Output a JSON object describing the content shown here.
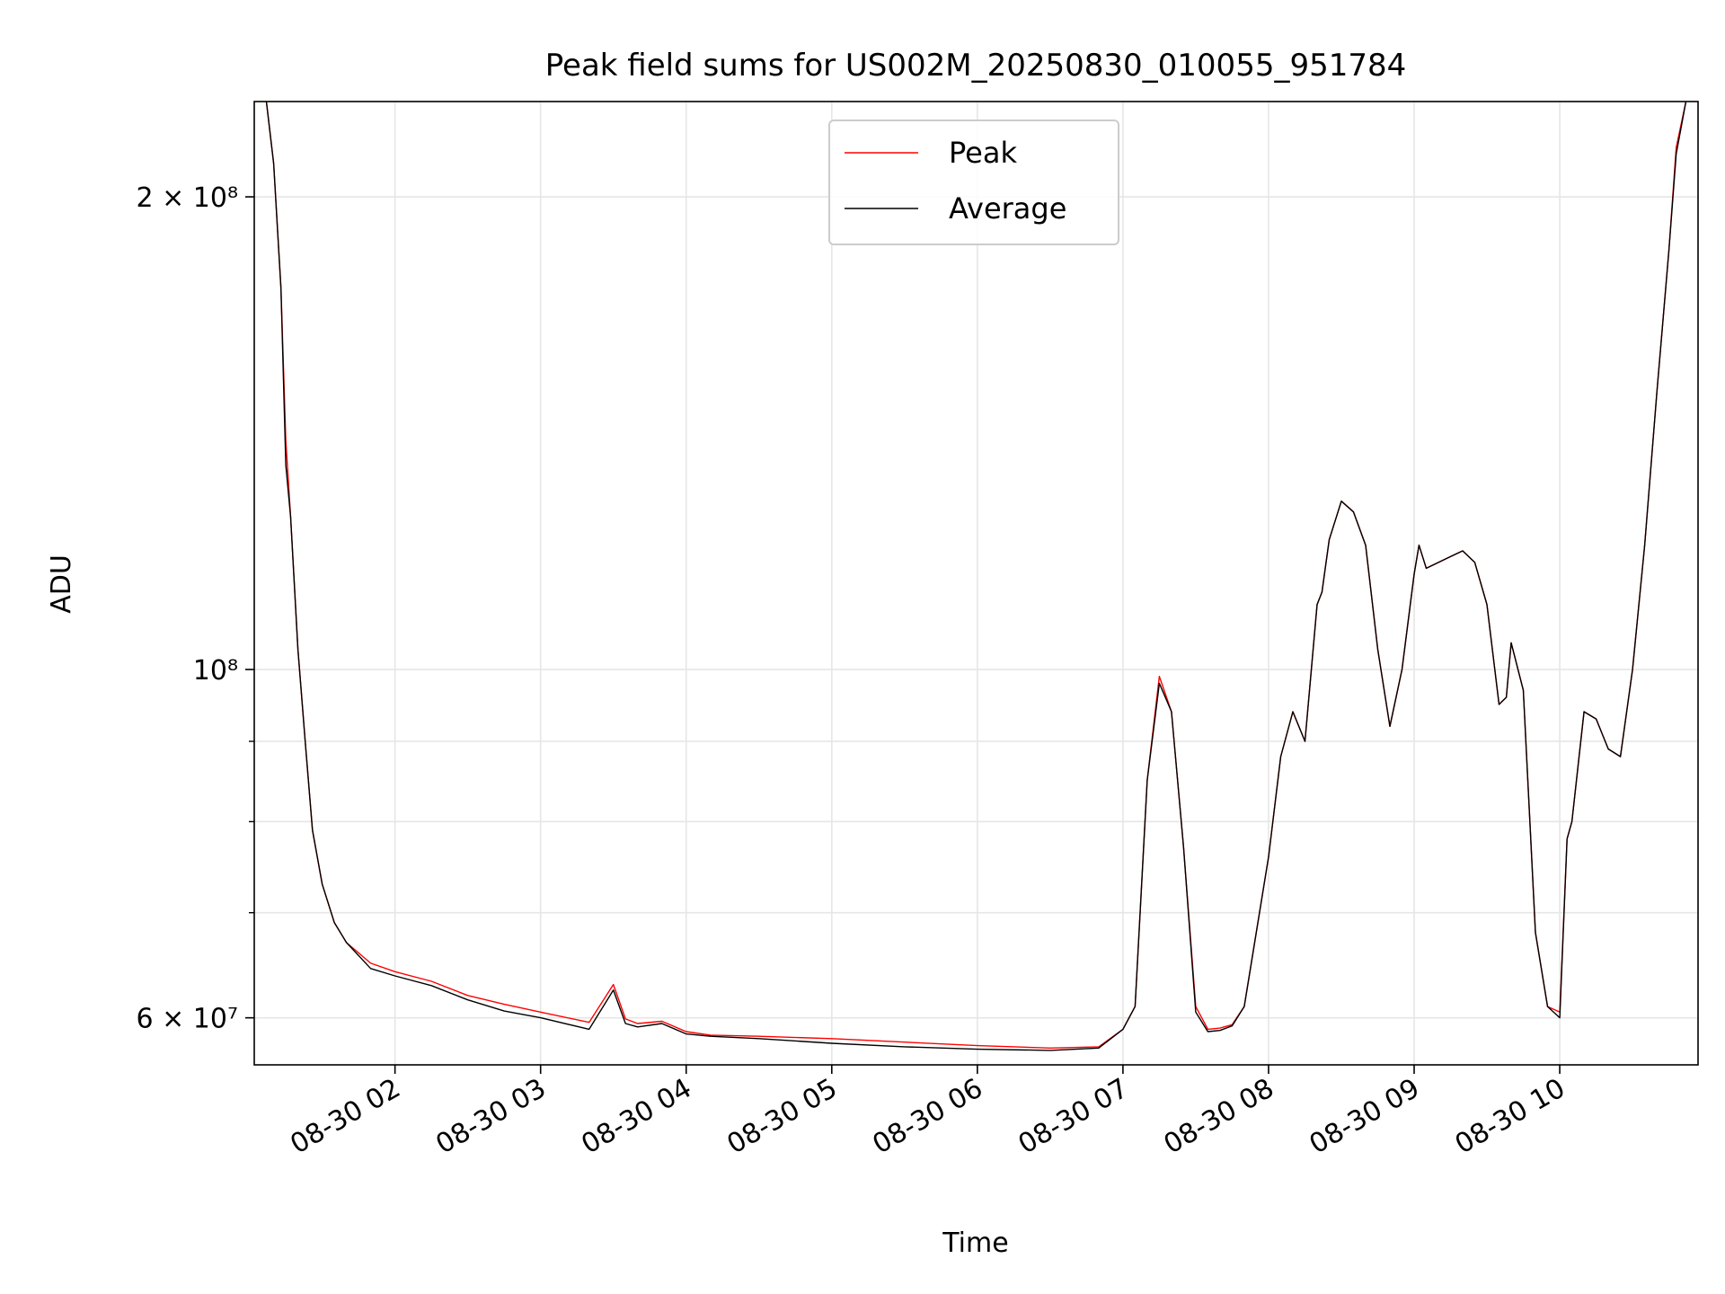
{
  "chart_data": {
    "type": "line",
    "title": "Peak field sums for US002M_20250830_010055_951784",
    "xlabel": "Time",
    "ylabel": "ADU",
    "y_scale": "log",
    "ylim": [
      56000000,
      230000000
    ],
    "xlim": [
      "2025-08-30 01:02",
      "2025-08-30 10:57"
    ],
    "grid": true,
    "legend_position": "upper center",
    "x_tick_labels": [
      "08-30 02",
      "08-30 03",
      "08-30 04",
      "08-30 05",
      "08-30 06",
      "08-30 07",
      "08-30 08",
      "08-30 09",
      "08-30 10"
    ],
    "x_ticks": [
      "2025-08-30 02:00",
      "2025-08-30 03:00",
      "2025-08-30 04:00",
      "2025-08-30 05:00",
      "2025-08-30 06:00",
      "2025-08-30 07:00",
      "2025-08-30 08:00",
      "2025-08-30 09:00",
      "2025-08-30 10:00"
    ],
    "y_tick_labels": [
      {
        "value": 200000000,
        "label": "2 × 10⁸"
      },
      {
        "value": 100000000,
        "label": "10⁸"
      },
      {
        "value": 60000000,
        "label": "6 × 10⁷"
      }
    ],
    "y_minor_ticks": [
      70000000,
      80000000,
      90000000
    ],
    "series": [
      {
        "name": "Peak",
        "color": "#ff0000",
        "x": [
          "2025-08-30 01:07",
          "2025-08-30 01:10",
          "2025-08-30 01:13",
          "2025-08-30 01:15",
          "2025-08-30 01:17",
          "2025-08-30 01:20",
          "2025-08-30 01:23",
          "2025-08-30 01:26",
          "2025-08-30 01:30",
          "2025-08-30 01:35",
          "2025-08-30 01:40",
          "2025-08-30 01:50",
          "2025-08-30 02:00",
          "2025-08-30 02:15",
          "2025-08-30 02:30",
          "2025-08-30 02:45",
          "2025-08-30 03:00",
          "2025-08-30 03:20",
          "2025-08-30 03:30",
          "2025-08-30 03:35",
          "2025-08-30 03:40",
          "2025-08-30 03:50",
          "2025-08-30 04:00",
          "2025-08-30 04:10",
          "2025-08-30 04:30",
          "2025-08-30 05:00",
          "2025-08-30 05:30",
          "2025-08-30 06:00",
          "2025-08-30 06:30",
          "2025-08-30 06:50",
          "2025-08-30 07:00",
          "2025-08-30 07:05",
          "2025-08-30 07:10",
          "2025-08-30 07:15",
          "2025-08-30 07:20",
          "2025-08-30 07:25",
          "2025-08-30 07:30",
          "2025-08-30 07:35",
          "2025-08-30 07:40",
          "2025-08-30 07:45",
          "2025-08-30 07:50",
          "2025-08-30 08:00",
          "2025-08-30 08:05",
          "2025-08-30 08:10",
          "2025-08-30 08:15",
          "2025-08-30 08:20",
          "2025-08-30 08:22",
          "2025-08-30 08:25",
          "2025-08-30 08:30",
          "2025-08-30 08:35",
          "2025-08-30 08:40",
          "2025-08-30 08:45",
          "2025-08-30 08:50",
          "2025-08-30 08:55",
          "2025-08-30 09:00",
          "2025-08-30 09:02",
          "2025-08-30 09:05",
          "2025-08-30 09:10",
          "2025-08-30 09:15",
          "2025-08-30 09:20",
          "2025-08-30 09:25",
          "2025-08-30 09:30",
          "2025-08-30 09:35",
          "2025-08-30 09:38",
          "2025-08-30 09:40",
          "2025-08-30 09:45",
          "2025-08-30 09:50",
          "2025-08-30 09:55",
          "2025-08-30 10:00",
          "2025-08-30 10:03",
          "2025-08-30 10:05",
          "2025-08-30 10:10",
          "2025-08-30 10:15",
          "2025-08-30 10:20",
          "2025-08-30 10:25",
          "2025-08-30 10:30",
          "2025-08-30 10:35",
          "2025-08-30 10:40",
          "2025-08-30 10:45",
          "2025-08-30 10:48",
          "2025-08-30 10:52"
        ],
        "y": [
          230000000,
          210000000,
          175000000,
          140000000,
          125000000,
          103000000,
          90000000,
          79000000,
          73000000,
          69000000,
          67000000,
          65000000,
          64200000,
          63300000,
          62000000,
          61200000,
          60500000,
          59600000,
          63000000,
          59900000,
          59500000,
          59700000,
          58800000,
          58500000,
          58400000,
          58200000,
          57900000,
          57600000,
          57400000,
          57500000,
          59000000,
          61000000,
          85000000,
          99000000,
          94000000,
          77000000,
          61000000,
          59000000,
          59100000,
          59400000,
          61000000,
          76000000,
          88000000,
          94000000,
          90000000,
          110000000,
          112000000,
          121000000,
          128000000,
          126000000,
          120000000,
          103000000,
          92000000,
          100000000,
          115000000,
          120000000,
          116000000,
          117000000,
          118000000,
          119000000,
          117000000,
          110000000,
          95000000,
          96000000,
          104000000,
          97000000,
          68000000,
          61000000,
          60500000,
          78000000,
          80000000,
          94000000,
          93000000,
          89000000,
          88000000,
          100000000,
          120000000,
          150000000,
          185000000,
          215000000,
          230000000
        ]
      },
      {
        "name": "Average",
        "color": "#000000",
        "x": [
          "2025-08-30 01:07",
          "2025-08-30 01:10",
          "2025-08-30 01:13",
          "2025-08-30 01:15",
          "2025-08-30 01:17",
          "2025-08-30 01:20",
          "2025-08-30 01:23",
          "2025-08-30 01:26",
          "2025-08-30 01:30",
          "2025-08-30 01:35",
          "2025-08-30 01:40",
          "2025-08-30 01:50",
          "2025-08-30 02:00",
          "2025-08-30 02:15",
          "2025-08-30 02:30",
          "2025-08-30 02:45",
          "2025-08-30 03:00",
          "2025-08-30 03:20",
          "2025-08-30 03:30",
          "2025-08-30 03:35",
          "2025-08-30 03:40",
          "2025-08-30 03:50",
          "2025-08-30 04:00",
          "2025-08-30 04:10",
          "2025-08-30 04:30",
          "2025-08-30 05:00",
          "2025-08-30 05:30",
          "2025-08-30 06:00",
          "2025-08-30 06:30",
          "2025-08-30 06:50",
          "2025-08-30 07:00",
          "2025-08-30 07:05",
          "2025-08-30 07:10",
          "2025-08-30 07:15",
          "2025-08-30 07:20",
          "2025-08-30 07:25",
          "2025-08-30 07:30",
          "2025-08-30 07:35",
          "2025-08-30 07:40",
          "2025-08-30 07:45",
          "2025-08-30 07:50",
          "2025-08-30 08:00",
          "2025-08-30 08:05",
          "2025-08-30 08:10",
          "2025-08-30 08:15",
          "2025-08-30 08:20",
          "2025-08-30 08:22",
          "2025-08-30 08:25",
          "2025-08-30 08:30",
          "2025-08-30 08:35",
          "2025-08-30 08:40",
          "2025-08-30 08:45",
          "2025-08-30 08:50",
          "2025-08-30 08:55",
          "2025-08-30 09:00",
          "2025-08-30 09:02",
          "2025-08-30 09:05",
          "2025-08-30 09:10",
          "2025-08-30 09:15",
          "2025-08-30 09:20",
          "2025-08-30 09:25",
          "2025-08-30 09:30",
          "2025-08-30 09:35",
          "2025-08-30 09:38",
          "2025-08-30 09:40",
          "2025-08-30 09:45",
          "2025-08-30 09:50",
          "2025-08-30 09:55",
          "2025-08-30 10:00",
          "2025-08-30 10:03",
          "2025-08-30 10:05",
          "2025-08-30 10:10",
          "2025-08-30 10:15",
          "2025-08-30 10:20",
          "2025-08-30 10:25",
          "2025-08-30 10:30",
          "2025-08-30 10:35",
          "2025-08-30 10:40",
          "2025-08-30 10:45",
          "2025-08-30 10:48",
          "2025-08-30 10:52"
        ],
        "y": [
          230000000,
          210000000,
          175000000,
          135000000,
          125000000,
          103000000,
          90000000,
          79000000,
          73000000,
          69000000,
          67000000,
          64500000,
          63800000,
          62900000,
          61600000,
          60600000,
          60000000,
          59000000,
          62500000,
          59500000,
          59200000,
          59500000,
          58600000,
          58400000,
          58200000,
          57800000,
          57500000,
          57300000,
          57200000,
          57400000,
          59000000,
          61000000,
          85000000,
          98000000,
          94000000,
          77000000,
          60500000,
          58800000,
          58900000,
          59300000,
          61000000,
          76000000,
          88000000,
          94000000,
          90000000,
          110000000,
          112000000,
          121000000,
          128000000,
          126000000,
          120000000,
          103000000,
          92000000,
          100000000,
          115000000,
          120000000,
          116000000,
          117000000,
          118000000,
          119000000,
          117000000,
          110000000,
          95000000,
          96000000,
          104000000,
          97000000,
          68000000,
          61000000,
          60000000,
          78000000,
          80000000,
          94000000,
          93000000,
          89000000,
          88000000,
          100000000,
          120000000,
          150000000,
          185000000,
          213000000,
          230000000
        ]
      }
    ]
  }
}
